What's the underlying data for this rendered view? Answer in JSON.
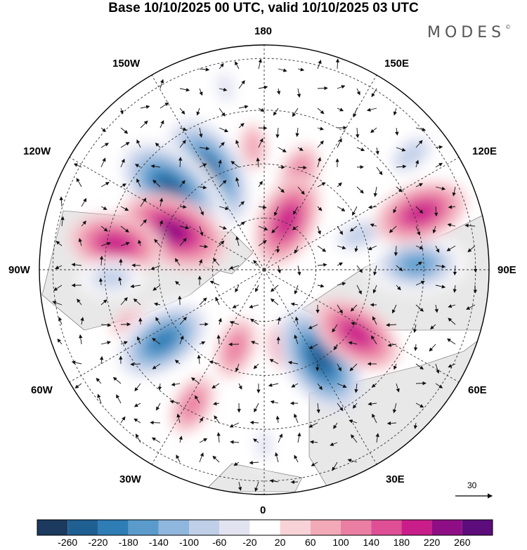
{
  "title": "Base 10/10/2025 00 UTC, valid 10/10/2025 03 UTC",
  "brand": "MODES",
  "brand_mark": "©",
  "longitude_labels": {
    "top": "180",
    "bottom": "0",
    "left": "90W",
    "right": "90E",
    "upper_left_1": "150W",
    "upper_left_2": "120W",
    "upper_right_1": "150E",
    "upper_right_2": "120E",
    "lower_left_1": "60W",
    "lower_left_2": "30W",
    "lower_right_1": "60E",
    "lower_right_2": "30E"
  },
  "vector_scale": {
    "label": "30"
  },
  "colorbar": {
    "colors": [
      "#1b3a5e",
      "#205f92",
      "#2e7db5",
      "#5a9bcc",
      "#8fb6dc",
      "#bfcfe8",
      "#e2e3f1",
      "#ffffff",
      "#f7d3d7",
      "#f2aab8",
      "#ea7fa3",
      "#de4f96",
      "#c91e8a",
      "#8f0e86",
      "#5c0c7b"
    ],
    "labels": [
      "-260",
      "-220",
      "-180",
      "-140",
      "-100",
      "-60",
      "-20",
      "20",
      "60",
      "100",
      "140",
      "180",
      "220",
      "260"
    ]
  },
  "anomalies": [
    {
      "lon": 155,
      "r": 0.24,
      "value": 180
    },
    {
      "lon": 160,
      "r": 0.45,
      "value": 100
    },
    {
      "lon": 110,
      "r": 0.74,
      "value": 180
    },
    {
      "lon": 92,
      "r": 0.68,
      "value": -180
    },
    {
      "lon": 110,
      "r": 0.45,
      "value": -100
    },
    {
      "lon": 128,
      "r": 0.83,
      "value": -100
    },
    {
      "lon": 55,
      "r": 0.5,
      "value": 180
    },
    {
      "lon": 32,
      "r": 0.47,
      "value": -240
    },
    {
      "lon": 12,
      "r": 0.35,
      "value": 60
    },
    {
      "lon": 0,
      "r": 0.78,
      "value": -60
    },
    {
      "lon": -20,
      "r": 0.37,
      "value": 100
    },
    {
      "lon": -28,
      "r": 0.68,
      "value": 100
    },
    {
      "lon": -55,
      "r": 0.55,
      "value": -220
    },
    {
      "lon": -68,
      "r": 0.63,
      "value": 60
    },
    {
      "lon": -87,
      "r": 0.68,
      "value": -100
    },
    {
      "lon": -100,
      "r": 0.67,
      "value": 180
    },
    {
      "lon": -113,
      "r": 0.44,
      "value": 220
    },
    {
      "lon": -131,
      "r": 0.55,
      "value": -260
    },
    {
      "lon": -150,
      "r": 0.5,
      "value": -240
    },
    {
      "lon": -168,
      "r": 0.83,
      "value": -60
    },
    {
      "lon": -175,
      "r": 0.55,
      "value": 60
    }
  ]
}
